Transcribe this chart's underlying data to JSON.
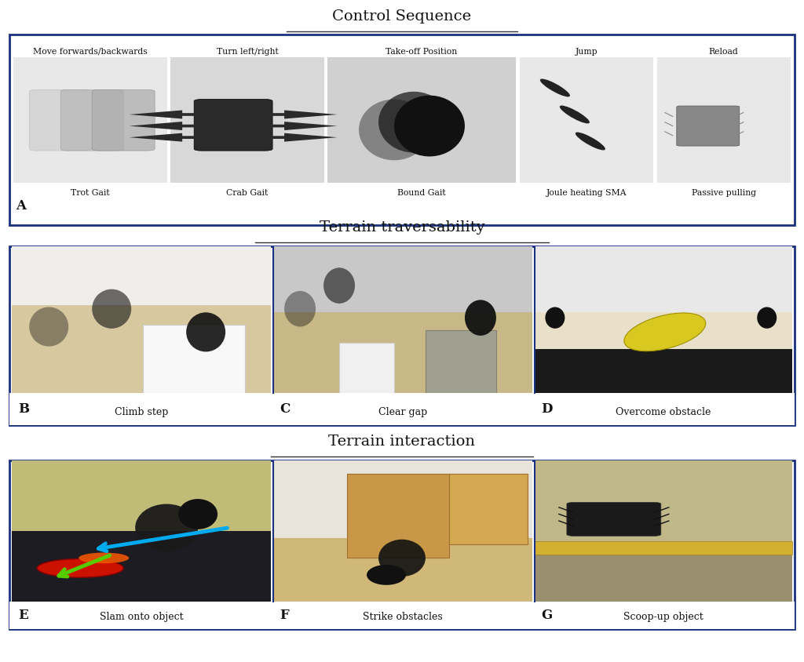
{
  "title1": "Control Sequence",
  "title2": "Terrain traversability",
  "title3": "Terrain interaction",
  "section1_labels_top": [
    "Move forwards/backwards",
    "Turn left/right",
    "Take-off Position",
    "Jump",
    "Reload"
  ],
  "section1_labels_bottom": [
    "Trot Gait",
    "Crab Gait",
    "Bound Gait",
    "Joule heating SMA",
    "Passive pulling"
  ],
  "section1_letter": "A",
  "section2_labels": [
    "Climb step",
    "Clear gap",
    "Overcome obstacle"
  ],
  "section2_letters": [
    "B",
    "C",
    "D"
  ],
  "section3_labels": [
    "Slam onto object",
    "Strike obstacles",
    "Scoop-up object"
  ],
  "section3_letters": [
    "E",
    "F",
    "G"
  ],
  "bg_color": "#ffffff",
  "border_color": "#1a3080",
  "s1_panel_colors": [
    "#e8e8e8",
    "#d8d8d8",
    "#d0d0d0",
    "#e8e8e8",
    "#e8e8e8"
  ],
  "s2_panel_colors": [
    "#ddd4b8",
    "#c8c0a0",
    "#e0ddd5"
  ],
  "s3_panel_E_top": "#c8c090",
  "s3_panel_E_bot": "#1a1a22",
  "s3_panel_F": "#c8a860",
  "s3_panel_G": "#b0a888",
  "label_color_dark": "#111111",
  "label_color_light": "#111111",
  "fig_width": 10.24,
  "fig_height": 8.44,
  "title_fontsize": 14,
  "label_fontsize": 9,
  "letter_fontsize": 12
}
